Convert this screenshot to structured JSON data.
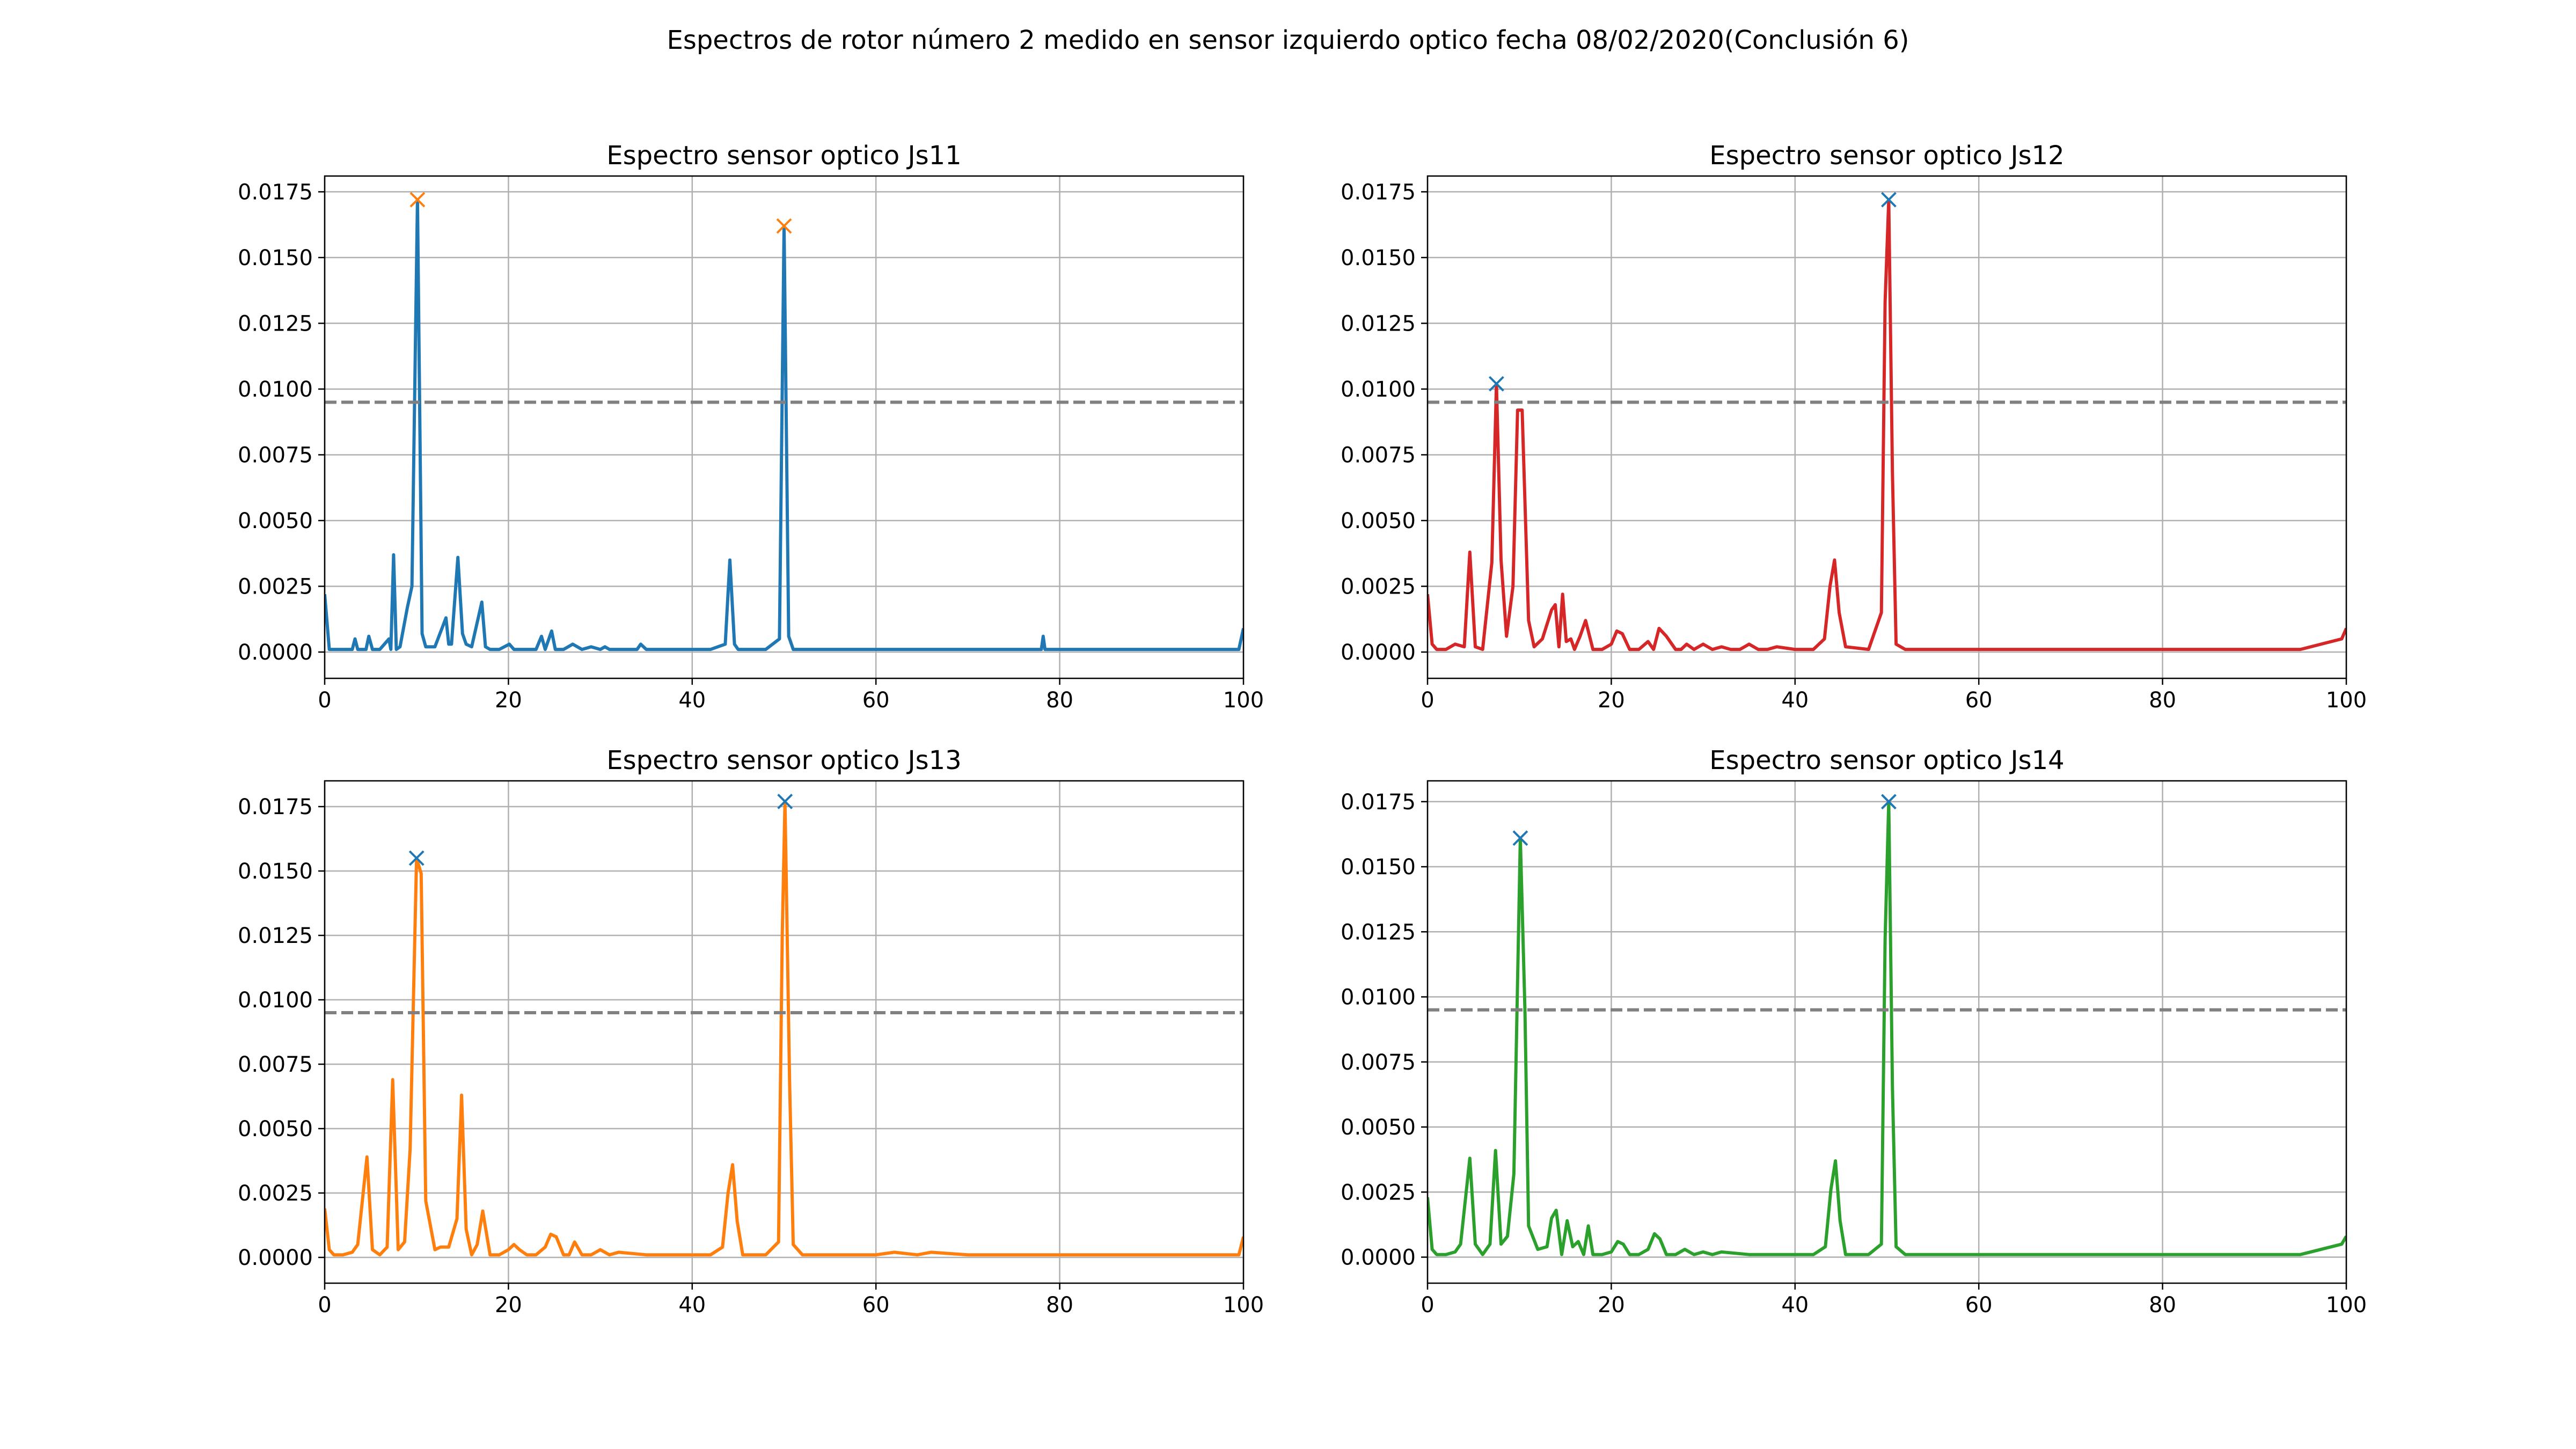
{
  "figure": {
    "suptitle": "Espectros de rotor número 2 medido en sensor izquierdo optico fecha 08/02/2020(Conclusión 6)"
  },
  "chart_data": [
    {
      "type": "line",
      "title": "Espectro sensor optico Js11",
      "xlim": [
        0,
        100
      ],
      "ylim": [
        -0.001,
        0.0181
      ],
      "xticks": [
        "0",
        "20",
        "40",
        "60",
        "80",
        "100"
      ],
      "yticks": [
        "0.0000",
        "0.0025",
        "0.0050",
        "0.0075",
        "0.0100",
        "0.0125",
        "0.0150",
        "0.0175"
      ],
      "grid": true,
      "color": "#1f77b4",
      "threshold": 0.0095,
      "threshold_color": "#808080",
      "peak_marker_color": "#ff7f0e",
      "peaks": [
        [
          10.1,
          0.0172
        ],
        [
          50.0,
          0.0162
        ]
      ],
      "series": [
        {
          "x": [
            0,
            0.5,
            1,
            2,
            3,
            3.3,
            3.6,
            4.5,
            4.8,
            5.2,
            6,
            7,
            7.2,
            7.5,
            7.8,
            8.2,
            9,
            9.5,
            10.1,
            10.6,
            11,
            12,
            13.2,
            13.5,
            13.8,
            14.5,
            15,
            15.4,
            16,
            17.1,
            17.5,
            18,
            19,
            20.1,
            20.6,
            21,
            23,
            23.6,
            24,
            24.7,
            25.1,
            26,
            27,
            28,
            29,
            30,
            30.5,
            31,
            34,
            34.4,
            35,
            38,
            40,
            42,
            43.6,
            44.1,
            44.6,
            45,
            48,
            49.5,
            50,
            50.5,
            51,
            52.5,
            55,
            60,
            62,
            65,
            70,
            75,
            78,
            78.2,
            78.4,
            80,
            85,
            89.5,
            90,
            95,
            99.5,
            100
          ],
          "y": [
            0.0022,
            0.0001,
            0.0001,
            0.0001,
            0.0001,
            0.0005,
            0.0001,
            0.0001,
            0.0006,
            0.0001,
            0.0001,
            0.0005,
            0.0001,
            0.0037,
            0.0001,
            0.0002,
            0.0017,
            0.0025,
            0.0172,
            0.0007,
            0.0002,
            0.0002,
            0.0013,
            0.0003,
            0.0003,
            0.0036,
            0.0007,
            0.0003,
            0.0002,
            0.0019,
            0.0002,
            0.0001,
            0.0001,
            0.0003,
            0.0001,
            0.0001,
            0.0001,
            0.0006,
            0.0001,
            0.0008,
            0.0001,
            0.0001,
            0.0003,
            0.0001,
            0.0002,
            0.0001,
            0.0002,
            0.0001,
            0.0001,
            0.0003,
            0.0001,
            0.0001,
            0.0001,
            0.0001,
            0.0003,
            0.0035,
            0.0003,
            0.0001,
            0.0001,
            0.0005,
            0.0162,
            0.0006,
            0.0001,
            0.0001,
            0.0001,
            0.0001,
            0.0001,
            0.0001,
            0.0001,
            0.0001,
            0.0001,
            0.0006,
            0.0001,
            0.0001,
            0.0001,
            0.0001,
            0.0001,
            0.0001,
            0.0001,
            0.0009
          ]
        }
      ]
    },
    {
      "type": "line",
      "title": "Espectro sensor optico Js12",
      "xlim": [
        0,
        100
      ],
      "ylim": [
        -0.001,
        0.0181
      ],
      "xticks": [
        "0",
        "20",
        "40",
        "60",
        "80",
        "100"
      ],
      "yticks": [
        "0.0000",
        "0.0025",
        "0.0050",
        "0.0075",
        "0.0100",
        "0.0125",
        "0.0150",
        "0.0175"
      ],
      "grid": true,
      "color": "#d62728",
      "threshold": 0.0095,
      "threshold_color": "#808080",
      "peak_marker_color": "#1f77b4",
      "peaks": [
        [
          7.5,
          0.0102
        ],
        [
          50.2,
          0.0172
        ]
      ],
      "series": [
        {
          "x": [
            0,
            0.5,
            1,
            2,
            3,
            4,
            4.6,
            5.2,
            6,
            7,
            7.5,
            8,
            8.6,
            9.3,
            9.8,
            10.3,
            11,
            11.6,
            12.5,
            13.5,
            13.9,
            14.3,
            14.7,
            15.1,
            15.6,
            16,
            16.6,
            17.2,
            18,
            19,
            20,
            20.6,
            21.2,
            22,
            23,
            24,
            24.6,
            25.2,
            26,
            27,
            27.6,
            28.2,
            29,
            30,
            31,
            32,
            33,
            34,
            35,
            36,
            37,
            38,
            40,
            42,
            43.2,
            43.8,
            44.3,
            44.8,
            45.5,
            48,
            49.4,
            49.8,
            50.2,
            50.6,
            51,
            52,
            55,
            60,
            65,
            70,
            75,
            80,
            85,
            90,
            95,
            99.5,
            100
          ],
          "y": [
            0.0022,
            0.0003,
            0.0001,
            0.0001,
            0.0003,
            0.0002,
            0.0038,
            0.0002,
            0.0001,
            0.0034,
            0.0102,
            0.0035,
            0.0006,
            0.0025,
            0.0092,
            0.0092,
            0.0012,
            0.0002,
            0.0005,
            0.0016,
            0.0018,
            0.0002,
            0.0022,
            0.0004,
            0.0005,
            0.0001,
            0.0006,
            0.0012,
            0.0001,
            0.0001,
            0.0003,
            0.0008,
            0.0007,
            0.0001,
            0.0001,
            0.0004,
            0.0001,
            0.0009,
            0.0006,
            0.0001,
            0.0001,
            0.0003,
            0.0001,
            0.0003,
            0.0001,
            0.0002,
            0.0001,
            0.0001,
            0.0003,
            0.0001,
            0.0001,
            0.0002,
            0.0001,
            0.0001,
            0.0005,
            0.0025,
            0.0035,
            0.0015,
            0.0002,
            0.0001,
            0.0015,
            0.0133,
            0.0172,
            0.0068,
            0.0003,
            0.0001,
            0.0001,
            0.0001,
            0.0001,
            0.0001,
            0.0001,
            0.0001,
            0.0001,
            0.0001,
            0.0001,
            0.0005,
            0.0009
          ]
        }
      ]
    },
    {
      "type": "line",
      "title": "Espectro sensor optico Js13",
      "xlim": [
        0,
        100
      ],
      "ylim": [
        -0.001,
        0.0185
      ],
      "xticks": [
        "0",
        "20",
        "40",
        "60",
        "80",
        "100"
      ],
      "yticks": [
        "0.0000",
        "0.0025",
        "0.0050",
        "0.0075",
        "0.0100",
        "0.0125",
        "0.0150",
        "0.0175"
      ],
      "grid": true,
      "color": "#ff7f0e",
      "threshold": 0.0095,
      "threshold_color": "#808080",
      "peak_marker_color": "#1f77b4",
      "peaks": [
        [
          10.0,
          0.0155
        ],
        [
          50.1,
          0.0177
        ]
      ],
      "series": [
        {
          "x": [
            0,
            0.5,
            1,
            2,
            3,
            3.6,
            4.6,
            5.2,
            6,
            6.8,
            7.4,
            8,
            8.7,
            9.3,
            10,
            10.5,
            11,
            12,
            12.6,
            13.5,
            14.4,
            14.9,
            15.4,
            16,
            16.6,
            17.2,
            18,
            19,
            20,
            20.6,
            21.2,
            22,
            23,
            24,
            24.6,
            25.2,
            26,
            26.6,
            27.2,
            28,
            29,
            30,
            31,
            32,
            35,
            38,
            40,
            42,
            43.3,
            43.9,
            44.4,
            44.9,
            45.5,
            48,
            49.4,
            49.8,
            50.1,
            50.6,
            51,
            52,
            55,
            60,
            62,
            64.5,
            66,
            70,
            75,
            80,
            85,
            90,
            95,
            99.5,
            100
          ],
          "y": [
            0.0019,
            0.0003,
            0.0001,
            0.0001,
            0.0002,
            0.0005,
            0.0039,
            0.0003,
            0.0001,
            0.0004,
            0.0069,
            0.0003,
            0.0006,
            0.0042,
            0.0155,
            0.0149,
            0.0022,
            0.0003,
            0.0004,
            0.0004,
            0.0015,
            0.0063,
            0.0011,
            0.0001,
            0.0005,
            0.0018,
            0.0001,
            0.0001,
            0.0003,
            0.0005,
            0.0003,
            0.0001,
            0.0001,
            0.0004,
            0.0009,
            0.0008,
            0.0001,
            0.0001,
            0.0006,
            0.0001,
            0.0001,
            0.0003,
            0.0001,
            0.0002,
            0.0001,
            0.0001,
            0.0001,
            0.0001,
            0.0004,
            0.0025,
            0.0036,
            0.0014,
            0.0001,
            0.0001,
            0.0006,
            0.0125,
            0.0177,
            0.0068,
            0.0005,
            0.0001,
            0.0001,
            0.0001,
            0.0002,
            0.0001,
            0.0002,
            0.0001,
            0.0001,
            0.0001,
            0.0001,
            0.0001,
            0.0001,
            0.0001,
            0.0008
          ]
        }
      ]
    },
    {
      "type": "line",
      "title": "Espectro sensor optico Js14",
      "xlim": [
        0,
        100
      ],
      "ylim": [
        -0.001,
        0.0183
      ],
      "xticks": [
        "0",
        "20",
        "40",
        "60",
        "80",
        "100"
      ],
      "yticks": [
        "0.0000",
        "0.0025",
        "0.0050",
        "0.0075",
        "0.0100",
        "0.0125",
        "0.0150",
        "0.0175"
      ],
      "grid": true,
      "color": "#2ca02c",
      "threshold": 0.0095,
      "threshold_color": "#808080",
      "peak_marker_color": "#1f77b4",
      "peaks": [
        [
          10.1,
          0.0161
        ],
        [
          50.2,
          0.0175
        ]
      ],
      "series": [
        {
          "x": [
            0,
            0.5,
            1,
            2,
            3,
            3.6,
            4.6,
            5.2,
            6,
            6.8,
            7.4,
            8,
            8.7,
            9.4,
            10.1,
            10.6,
            11,
            12,
            13,
            13.5,
            14,
            14.6,
            15.2,
            15.8,
            16.4,
            17,
            17.5,
            18,
            19,
            20,
            20.7,
            21.3,
            22,
            23,
            24,
            24.7,
            25.3,
            26,
            27,
            28,
            29,
            30,
            31,
            32,
            35,
            38,
            40,
            42,
            43.3,
            43.9,
            44.4,
            44.9,
            45.5,
            48,
            49.4,
            49.8,
            50.2,
            50.6,
            51,
            52,
            55,
            60,
            65,
            70,
            75,
            80,
            85,
            90,
            95,
            99.5,
            100
          ],
          "y": [
            0.0023,
            0.0003,
            0.0001,
            0.0001,
            0.0002,
            0.0005,
            0.0038,
            0.0005,
            0.0001,
            0.0005,
            0.0041,
            0.0005,
            0.0008,
            0.0032,
            0.0161,
            0.0095,
            0.0012,
            0.0003,
            0.0004,
            0.0015,
            0.0018,
            0.0001,
            0.0014,
            0.0004,
            0.0006,
            0.0001,
            0.0012,
            0.0001,
            0.0001,
            0.0002,
            0.0006,
            0.0005,
            0.0001,
            0.0001,
            0.0003,
            0.0009,
            0.0007,
            0.0001,
            0.0001,
            0.0003,
            0.0001,
            0.0002,
            0.0001,
            0.0002,
            0.0001,
            0.0001,
            0.0001,
            0.0001,
            0.0004,
            0.0026,
            0.0037,
            0.0014,
            0.0001,
            0.0001,
            0.0005,
            0.0122,
            0.0175,
            0.0065,
            0.0004,
            0.0001,
            0.0001,
            0.0001,
            0.0001,
            0.0001,
            0.0001,
            0.0001,
            0.0001,
            0.0001,
            0.0001,
            0.0005,
            0.0008
          ]
        }
      ]
    }
  ]
}
